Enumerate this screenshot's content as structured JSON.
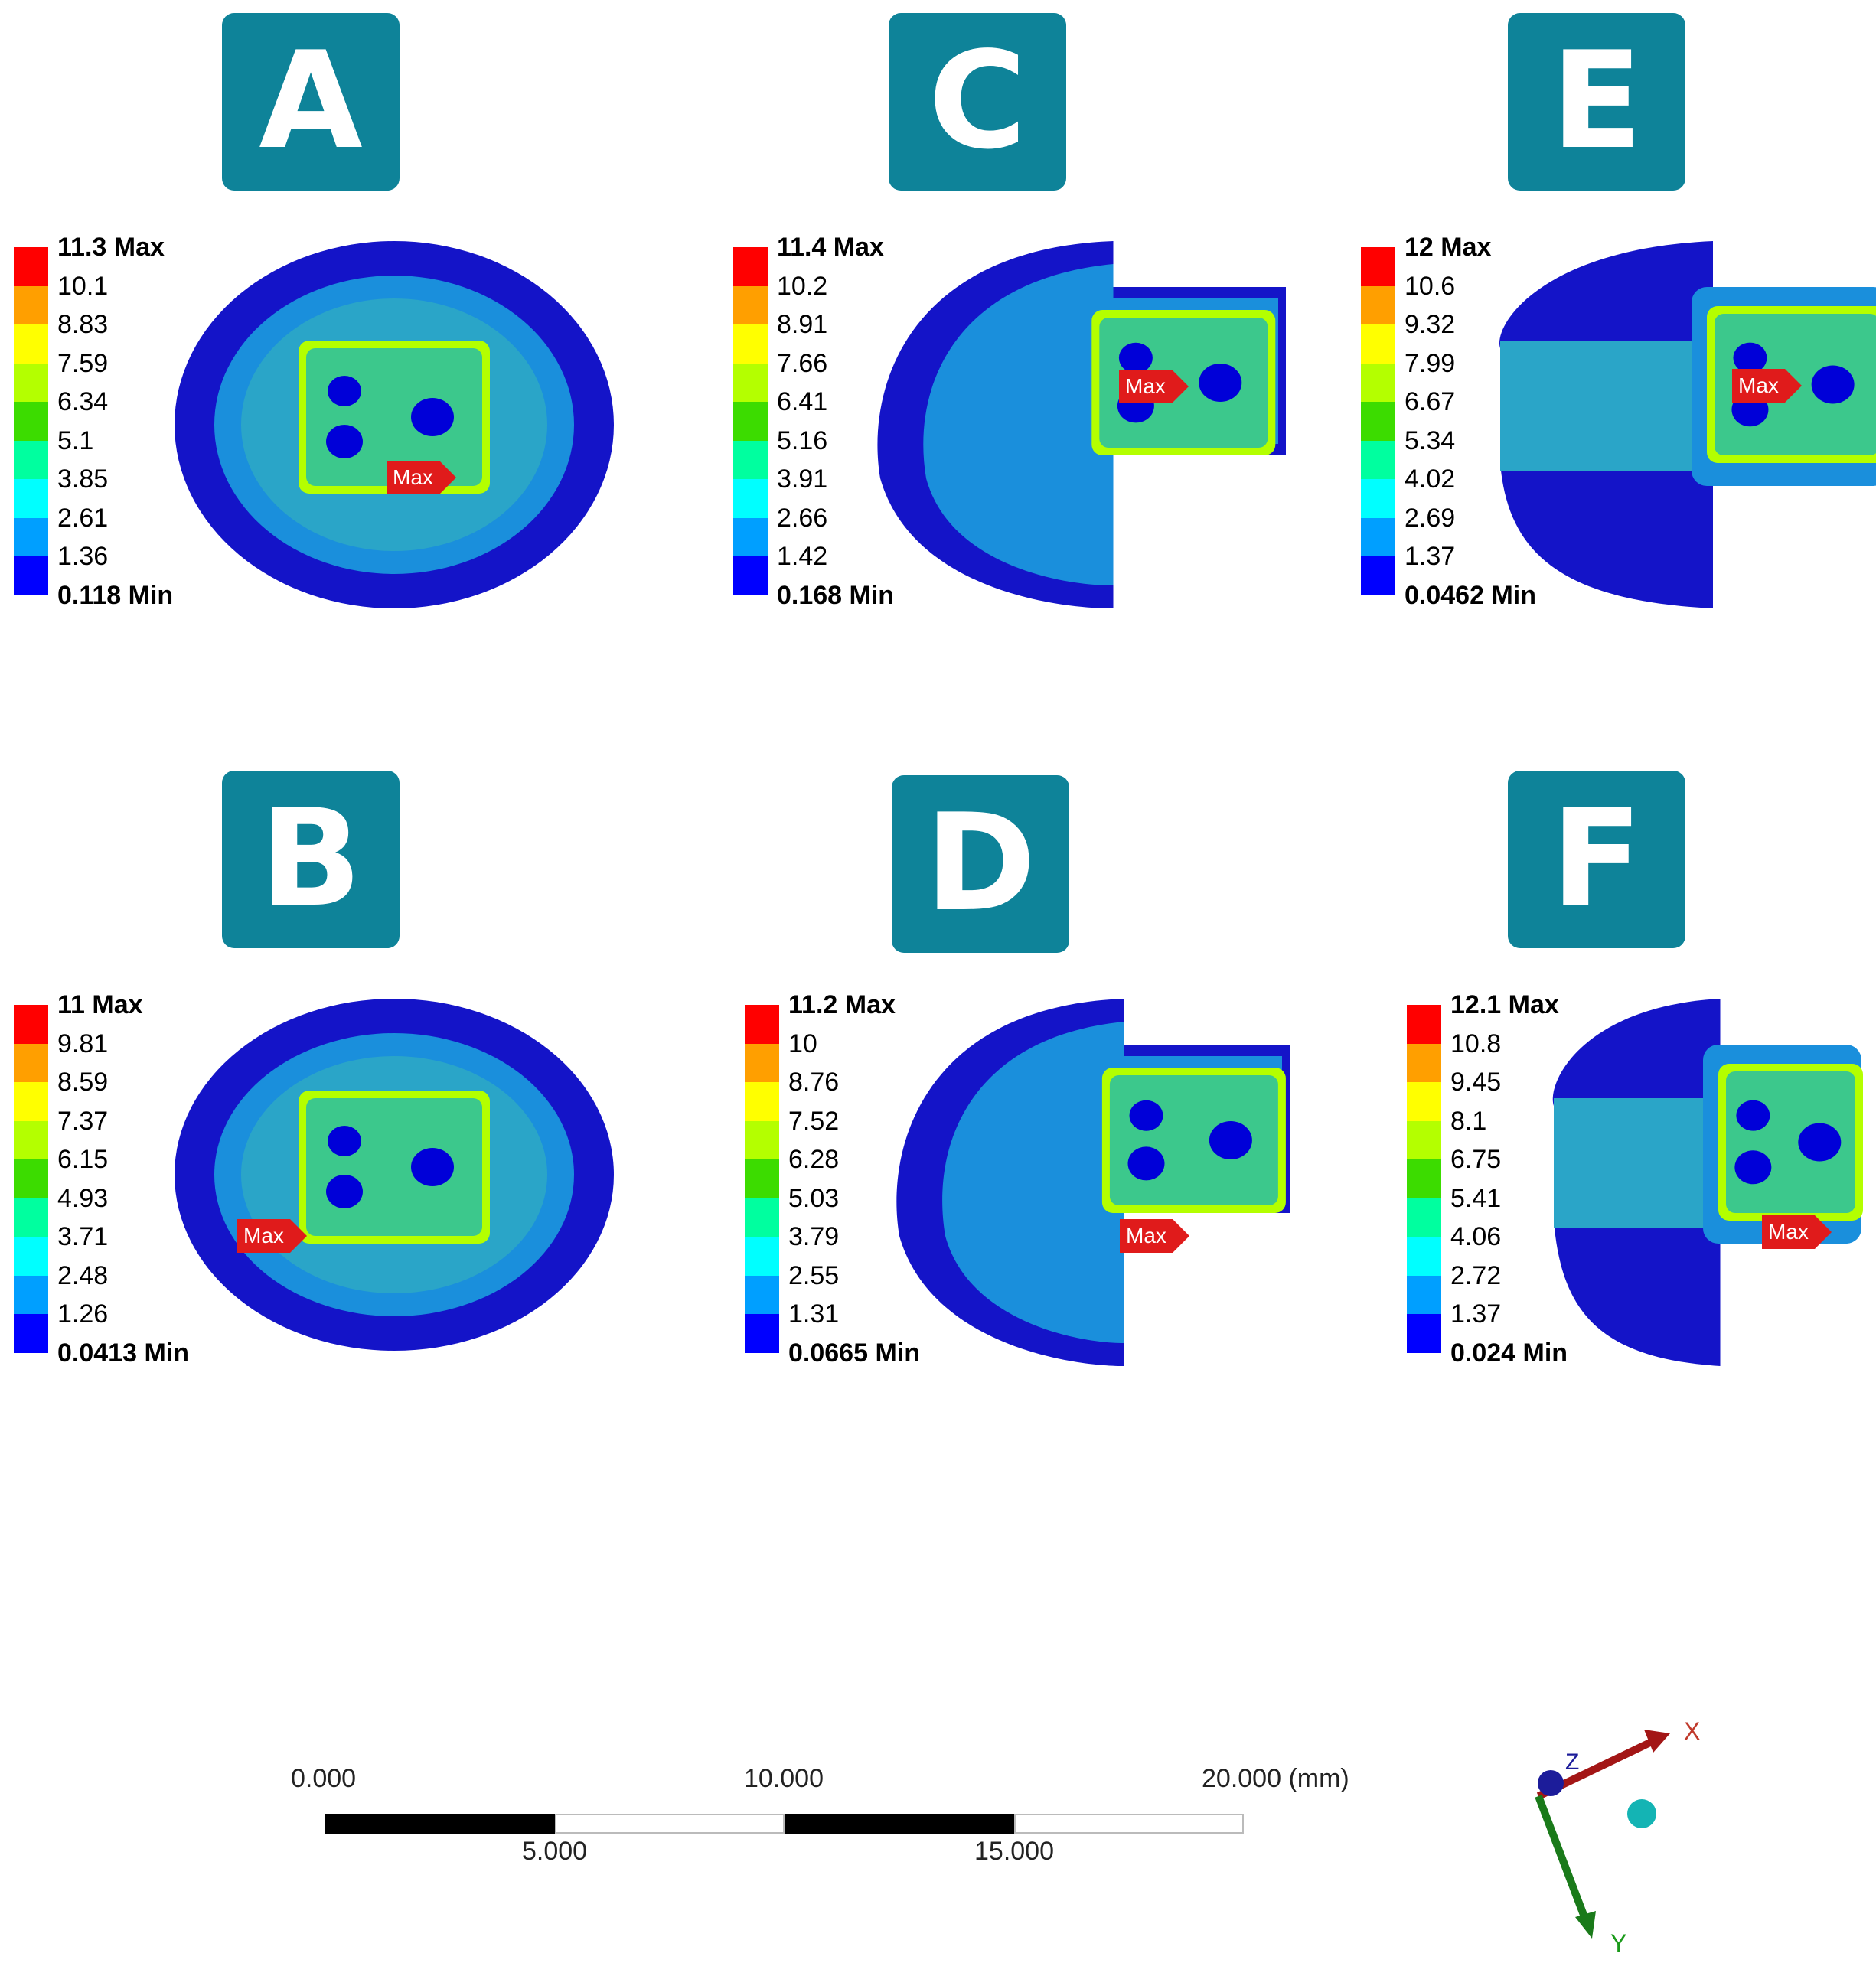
{
  "panels": [
    {
      "id": "A",
      "max_label": "11.3 Max",
      "min_label": "0.118 Min",
      "ticks": [
        "10.1",
        "8.83",
        "7.59",
        "6.34",
        "5.1",
        "3.85",
        "2.61",
        "1.36"
      ],
      "shape": "full"
    },
    {
      "id": "C",
      "max_label": "11.4 Max",
      "min_label": "0.168 Min",
      "ticks": [
        "10.2",
        "8.91",
        "7.66",
        "6.41",
        "5.16",
        "3.91",
        "2.66",
        "1.42"
      ],
      "shape": "mod"
    },
    {
      "id": "E",
      "max_label": "12 Max",
      "min_label": "0.0462 Min",
      "ticks": [
        "10.6",
        "9.32",
        "7.99",
        "6.67",
        "5.34",
        "4.02",
        "2.69",
        "1.37"
      ],
      "shape": "modsplit"
    },
    {
      "id": "B",
      "max_label": "11 Max",
      "min_label": "0.0413 Min",
      "ticks": [
        "9.81",
        "8.59",
        "7.37",
        "6.15",
        "4.93",
        "3.71",
        "2.48",
        "1.26"
      ],
      "shape": "full"
    },
    {
      "id": "D",
      "max_label": "11.2 Max",
      "min_label": "0.0665 Min",
      "ticks": [
        "10",
        "8.76",
        "7.52",
        "6.28",
        "5.03",
        "3.79",
        "2.55",
        "1.31"
      ],
      "shape": "mod"
    },
    {
      "id": "F",
      "max_label": "12.1 Max",
      "min_label": "0.024 Min",
      "ticks": [
        "10.8",
        "9.45",
        "8.1",
        "6.75",
        "5.41",
        "4.06",
        "2.72",
        "1.37"
      ],
      "shape": "modsplit"
    }
  ],
  "max_marker_label": "Max",
  "legend_colors": [
    "#ff0000",
    "#ff9f00",
    "#ffff00",
    "#b4ff00",
    "#3cdc00",
    "#00ff9f",
    "#00ffff",
    "#009fff",
    "#0000ff"
  ],
  "scale_bar": {
    "labels_top": [
      "0.000",
      "10.000",
      "20.000 (mm)"
    ],
    "labels_bottom": [
      "5.000",
      "15.000"
    ]
  },
  "triad": {
    "x": "X",
    "y": "Y",
    "z": "Z"
  }
}
